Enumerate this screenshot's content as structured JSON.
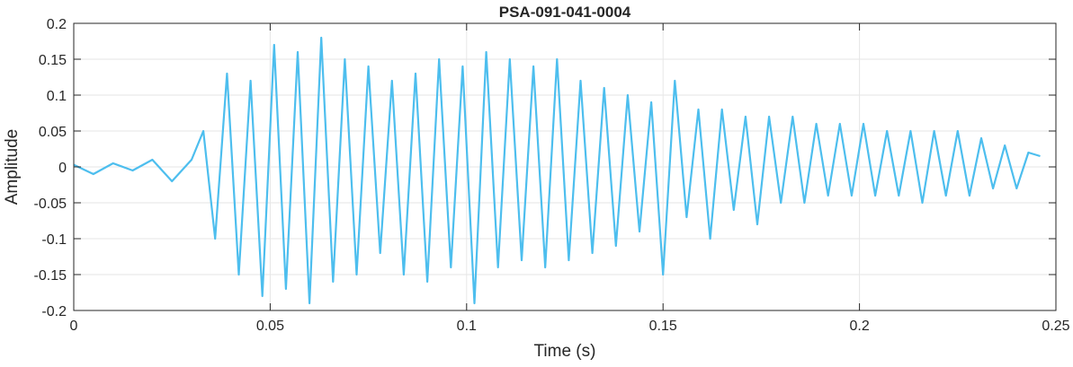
{
  "chart_data": {
    "type": "line",
    "title": "PSA-091-041-0004",
    "xlabel": "Time (s)",
    "ylabel": "Amplitude",
    "xlim": [
      0,
      0.25
    ],
    "ylim": [
      -0.2,
      0.2
    ],
    "grid": true,
    "x_ticks": [
      0,
      0.05,
      0.1,
      0.15,
      0.2,
      0.25
    ],
    "x_tick_labels": [
      "0",
      "0.05",
      "0.1",
      "0.15",
      "0.2",
      "0.25"
    ],
    "y_ticks": [
      0.2,
      0.15,
      0.1,
      0.05,
      0,
      -0.05,
      -0.1,
      -0.15,
      -0.2
    ],
    "y_tick_labels": [
      "0.2",
      "0.15",
      "0.1",
      "0.05",
      "0",
      "-0.05",
      "-0.1",
      "-0.15",
      "-0.2"
    ],
    "series": [
      {
        "color": "#4dbeee",
        "x": [
          0,
          0.005,
          0.01,
          0.015,
          0.02,
          0.025,
          0.03,
          0.033,
          0.036,
          0.039,
          0.042,
          0.045,
          0.048,
          0.051,
          0.054,
          0.057,
          0.06,
          0.063,
          0.066,
          0.069,
          0.072,
          0.075,
          0.078,
          0.081,
          0.084,
          0.087,
          0.09,
          0.093,
          0.096,
          0.099,
          0.102,
          0.105,
          0.108,
          0.111,
          0.114,
          0.117,
          0.12,
          0.123,
          0.126,
          0.129,
          0.132,
          0.135,
          0.138,
          0.141,
          0.144,
          0.147,
          0.15,
          0.153,
          0.156,
          0.159,
          0.162,
          0.165,
          0.168,
          0.171,
          0.174,
          0.177,
          0.18,
          0.183,
          0.186,
          0.189,
          0.192,
          0.195,
          0.198,
          0.201,
          0.204,
          0.207,
          0.21,
          0.213,
          0.216,
          0.219,
          0.222,
          0.225,
          0.228,
          0.231,
          0.234,
          0.237,
          0.24,
          0.243,
          0.246
        ],
        "y": [
          0.003,
          -0.01,
          0.005,
          -0.005,
          0.01,
          -0.02,
          0.01,
          0.05,
          -0.1,
          0.13,
          -0.15,
          0.12,
          -0.18,
          0.17,
          -0.17,
          0.16,
          -0.19,
          0.18,
          -0.16,
          0.15,
          -0.15,
          0.14,
          -0.12,
          0.12,
          -0.15,
          0.13,
          -0.16,
          0.15,
          -0.14,
          0.14,
          -0.19,
          0.16,
          -0.14,
          0.15,
          -0.13,
          0.14,
          -0.14,
          0.15,
          -0.13,
          0.12,
          -0.12,
          0.11,
          -0.11,
          0.1,
          -0.09,
          0.09,
          -0.15,
          0.12,
          -0.07,
          0.08,
          -0.1,
          0.08,
          -0.06,
          0.07,
          -0.08,
          0.07,
          -0.05,
          0.07,
          -0.05,
          0.06,
          -0.04,
          0.06,
          -0.04,
          0.06,
          -0.04,
          0.05,
          -0.04,
          0.05,
          -0.05,
          0.05,
          -0.04,
          0.05,
          -0.04,
          0.04,
          -0.03,
          0.03,
          -0.03,
          0.02,
          0.015
        ]
      }
    ]
  }
}
